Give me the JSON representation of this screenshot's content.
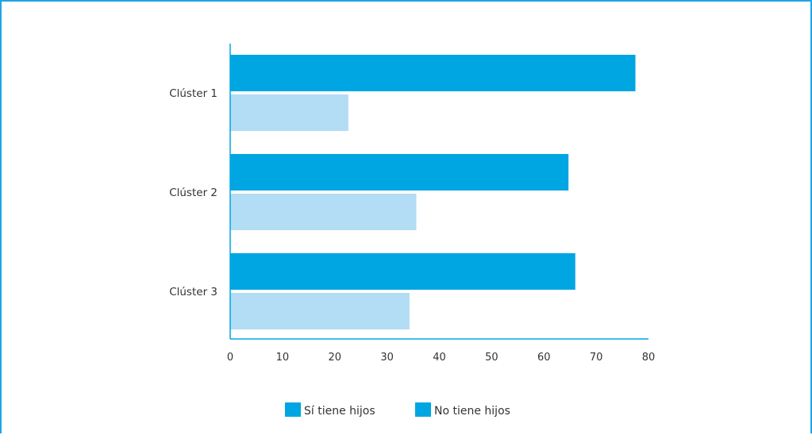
{
  "chart_data": {
    "type": "bar",
    "orientation": "horizontal",
    "categories": [
      "Clúster 1",
      "Clúster 2",
      "Clúster 3"
    ],
    "series": [
      {
        "name": "Sí tiene hijos",
        "values": [
          77.5,
          64.7,
          66.0
        ],
        "color": "#00a6e2"
      },
      {
        "name": "No tiene hijos",
        "values": [
          22.6,
          35.6,
          34.3
        ],
        "color": "#b3dcf5"
      }
    ],
    "legend_colors": [
      "#00a6e2",
      "#00a6e2"
    ],
    "xlim": [
      0,
      80
    ],
    "xticks": [
      0,
      10,
      20,
      30,
      40,
      50,
      60,
      70,
      80
    ],
    "grid": false,
    "legend_position": "bottom",
    "title": "",
    "xlabel": "",
    "ylabel": ""
  }
}
